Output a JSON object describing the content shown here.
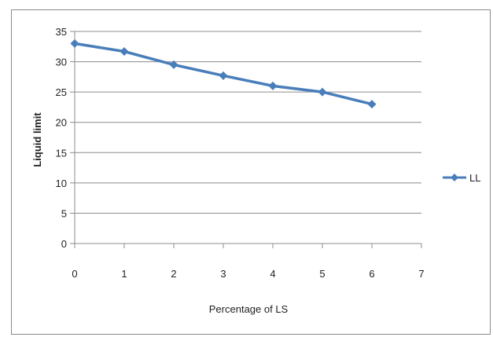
{
  "chart_data": {
    "type": "line",
    "xlabel": "Percentage of LS",
    "ylabel": "Liquid limit",
    "x_ticks": [
      "0",
      "1",
      "2",
      "3",
      "4",
      "5",
      "6",
      "7"
    ],
    "y_ticks": [
      "0",
      "5",
      "10",
      "15",
      "20",
      "25",
      "30",
      "35"
    ],
    "xlim": [
      0,
      7
    ],
    "ylim": [
      0,
      35
    ],
    "grid": "horizontal",
    "legend_position": "right",
    "series": [
      {
        "name": "LL",
        "color": "#4a7ebb",
        "marker": "diamond",
        "x": [
          0,
          1,
          2,
          3,
          4,
          5,
          6
        ],
        "y": [
          33,
          31.7,
          29.5,
          27.7,
          26,
          25,
          23
        ]
      }
    ]
  }
}
